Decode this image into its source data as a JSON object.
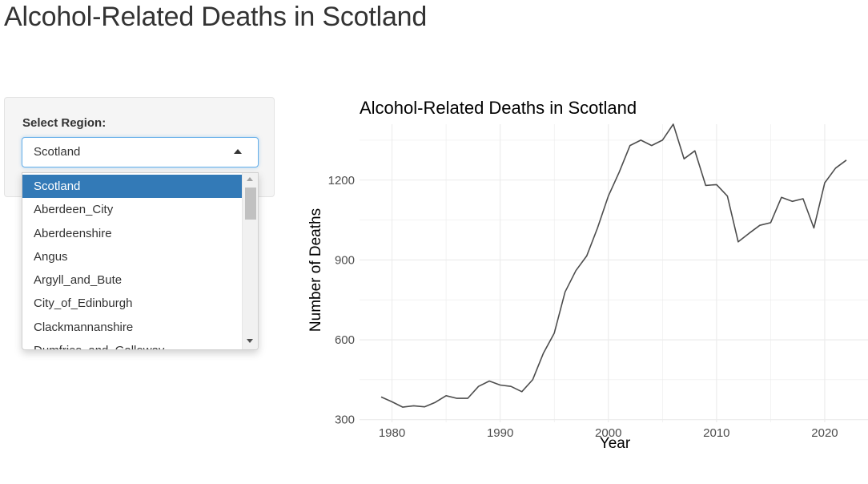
{
  "app": {
    "title": "Alcohol-Related Deaths in Scotland"
  },
  "sidebar": {
    "select_label": "Select Region:",
    "selected_value": "Scotland",
    "options": [
      "Scotland",
      "Aberdeen_City",
      "Aberdeenshire",
      "Angus",
      "Argyll_and_Bute",
      "City_of_Edinburgh",
      "Clackmannanshire",
      "Dumfries_and_Galloway"
    ],
    "dropdown_open": true,
    "icons": {
      "select_caret": "caret-up-icon",
      "scroll_up": "scroll-up-icon",
      "scroll_down": "scroll-down-icon"
    }
  },
  "colors": {
    "accent": "#337ab7",
    "focus_border": "#66afe9",
    "line": "#4d4d4d",
    "grid": "#ebebeb"
  },
  "chart_data": {
    "type": "line",
    "title": "Alcohol-Related Deaths in Scotland",
    "xlabel": "Year",
    "ylabel": "Number of Deaths",
    "xlim": [
      1977,
      2024
    ],
    "ylim": [
      290,
      1410
    ],
    "x_ticks": [
      1980,
      1990,
      2000,
      2010,
      2020
    ],
    "y_ticks": [
      300,
      600,
      900,
      1200
    ],
    "grid": true,
    "legend": "none",
    "series": [
      {
        "x": [
          1979,
          1980,
          1981,
          1982,
          1983,
          1984,
          1985,
          1986,
          1987,
          1988,
          1989,
          1990,
          1991,
          1992,
          1993,
          1994,
          1995,
          1996,
          1997,
          1998,
          1999,
          2000,
          2001,
          2002,
          2003,
          2004,
          2005,
          2006,
          2007,
          2008,
          2009,
          2010,
          2011,
          2012,
          2013,
          2014,
          2015,
          2016,
          2017,
          2018,
          2019,
          2020,
          2021,
          2022
        ],
        "values": [
          385,
          367,
          347,
          352,
          348,
          365,
          390,
          380,
          380,
          425,
          445,
          430,
          425,
          405,
          450,
          550,
          625,
          780,
          860,
          915,
          1020,
          1140,
          1230,
          1330,
          1350,
          1330,
          1350,
          1410,
          1280,
          1310,
          1180,
          1183,
          1140,
          968,
          1000,
          1030,
          1040,
          1135,
          1120,
          1130,
          1020,
          1190,
          1245,
          1275
        ]
      }
    ]
  }
}
